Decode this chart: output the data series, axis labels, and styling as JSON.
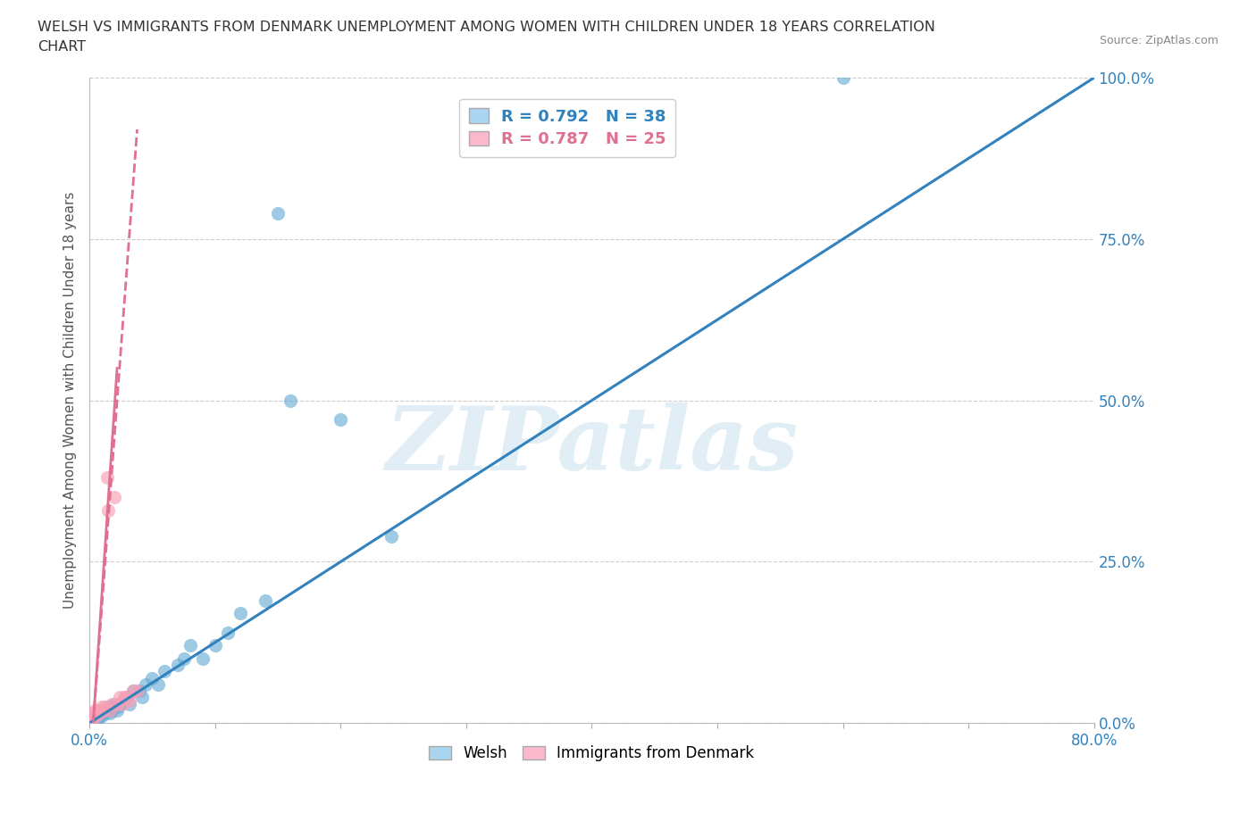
{
  "title_line1": "WELSH VS IMMIGRANTS FROM DENMARK UNEMPLOYMENT AMONG WOMEN WITH CHILDREN UNDER 18 YEARS CORRELATION",
  "title_line2": "CHART",
  "source": "Source: ZipAtlas.com",
  "ylabel": "Unemployment Among Women with Children Under 18 years",
  "xmin": 0.0,
  "xmax": 0.8,
  "ymin": 0.0,
  "ymax": 1.0,
  "yticks": [
    0.0,
    0.25,
    0.5,
    0.75,
    1.0
  ],
  "ytick_labels": [
    "0.0%",
    "25.0%",
    "50.0%",
    "75.0%",
    "100.0%"
  ],
  "welsh_color": "#6baed6",
  "denmark_color": "#fa9fb5",
  "welsh_R": 0.792,
  "welsh_N": 38,
  "denmark_R": 0.787,
  "denmark_N": 25,
  "welsh_points_x": [
    0.005,
    0.007,
    0.008,
    0.01,
    0.012,
    0.013,
    0.014,
    0.015,
    0.016,
    0.018,
    0.019,
    0.02,
    0.022,
    0.023,
    0.025,
    0.027,
    0.03,
    0.032,
    0.035,
    0.04,
    0.042,
    0.045,
    0.05,
    0.055,
    0.06,
    0.07,
    0.075,
    0.08,
    0.09,
    0.1,
    0.11,
    0.12,
    0.14,
    0.16,
    0.2,
    0.24,
    0.6,
    0.15
  ],
  "welsh_points_y": [
    0.005,
    0.008,
    0.01,
    0.012,
    0.015,
    0.018,
    0.02,
    0.025,
    0.015,
    0.02,
    0.025,
    0.03,
    0.02,
    0.025,
    0.03,
    0.035,
    0.04,
    0.03,
    0.05,
    0.05,
    0.04,
    0.06,
    0.07,
    0.06,
    0.08,
    0.09,
    0.1,
    0.12,
    0.1,
    0.12,
    0.14,
    0.17,
    0.19,
    0.5,
    0.47,
    0.29,
    1.0,
    0.79
  ],
  "denmark_points_x": [
    0.001,
    0.002,
    0.003,
    0.004,
    0.005,
    0.006,
    0.007,
    0.008,
    0.009,
    0.01,
    0.011,
    0.012,
    0.014,
    0.015,
    0.016,
    0.018,
    0.02,
    0.022,
    0.024,
    0.026,
    0.028,
    0.03,
    0.032,
    0.035,
    0.038
  ],
  "denmark_points_y": [
    0.01,
    0.015,
    0.01,
    0.02,
    0.01,
    0.015,
    0.02,
    0.015,
    0.02,
    0.025,
    0.02,
    0.025,
    0.38,
    0.33,
    0.02,
    0.03,
    0.35,
    0.03,
    0.04,
    0.03,
    0.04,
    0.04,
    0.035,
    0.05,
    0.05
  ],
  "watermark": "ZIPatlas",
  "background_color": "#ffffff",
  "grid_color": "#cccccc",
  "trendline_blue_color": "#3182bd",
  "trendline_pink_color": "#e07090",
  "legend_box_color": "#aad4f0",
  "legend_pink_color": "#f9b8cc"
}
